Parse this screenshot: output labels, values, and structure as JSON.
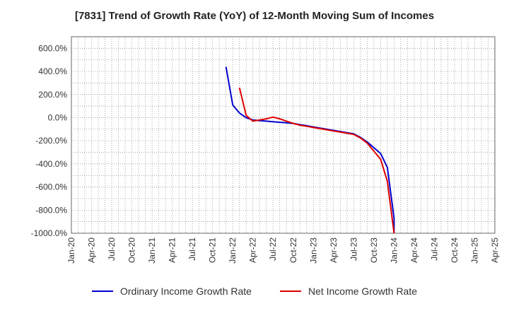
{
  "chart_data": {
    "type": "line",
    "title": "[7831]  Trend of Growth Rate (YoY) of 12-Month Moving Sum of Incomes",
    "xlabel": "",
    "ylabel": "",
    "x_ticks": [
      "Jan-20",
      "Apr-20",
      "Jul-20",
      "Oct-20",
      "Jan-21",
      "Apr-21",
      "Jul-21",
      "Oct-21",
      "Jan-22",
      "Apr-22",
      "Jul-22",
      "Oct-22",
      "Jan-23",
      "Apr-23",
      "Jul-23",
      "Oct-23",
      "Jan-24",
      "Apr-24",
      "Jul-24",
      "Oct-24",
      "Jan-25",
      "Apr-25"
    ],
    "y_ticks": [
      "600.0%",
      "400.0%",
      "200.0%",
      "0.0%",
      "-200.0%",
      "-400.0%",
      "-600.0%",
      "-800.0%",
      "-1000.0%"
    ],
    "ylim": [
      -1000,
      700
    ],
    "xlim": [
      "2020-01",
      "2025-04"
    ],
    "grid": true,
    "legend_position": "bottom",
    "series": [
      {
        "name": "Ordinary Income Growth Rate",
        "color": "#0000cc",
        "points": [
          [
            "2021-12",
            440
          ],
          [
            "2022-01",
            110
          ],
          [
            "2022-02",
            40
          ],
          [
            "2022-03",
            0
          ],
          [
            "2022-04",
            -20
          ],
          [
            "2022-05",
            -25
          ],
          [
            "2022-06",
            -30
          ],
          [
            "2022-07",
            -35
          ],
          [
            "2022-08",
            -40
          ],
          [
            "2022-09",
            -45
          ],
          [
            "2022-10",
            -50
          ],
          [
            "2022-11",
            -60
          ],
          [
            "2022-12",
            -70
          ],
          [
            "2023-01",
            -80
          ],
          [
            "2023-02",
            -90
          ],
          [
            "2023-03",
            -100
          ],
          [
            "2023-04",
            -110
          ],
          [
            "2023-05",
            -120
          ],
          [
            "2023-06",
            -130
          ],
          [
            "2023-07",
            -140
          ],
          [
            "2023-08",
            -170
          ],
          [
            "2023-09",
            -210
          ],
          [
            "2023-10",
            -260
          ],
          [
            "2023-11",
            -310
          ],
          [
            "2023-12",
            -430
          ],
          [
            "2024-01",
            -870
          ],
          [
            "2024-01",
            -1000
          ]
        ]
      },
      {
        "name": "Net Income Growth Rate",
        "color": "#dd0000",
        "points": [
          [
            "2022-02",
            260
          ],
          [
            "2022-03",
            20
          ],
          [
            "2022-04",
            -30
          ],
          [
            "2022-05",
            -20
          ],
          [
            "2022-06",
            -10
          ],
          [
            "2022-07",
            5
          ],
          [
            "2022-08",
            -10
          ],
          [
            "2022-09",
            -30
          ],
          [
            "2022-10",
            -50
          ],
          [
            "2022-11",
            -65
          ],
          [
            "2022-12",
            -75
          ],
          [
            "2023-01",
            -85
          ],
          [
            "2023-02",
            -95
          ],
          [
            "2023-03",
            -105
          ],
          [
            "2023-04",
            -115
          ],
          [
            "2023-05",
            -125
          ],
          [
            "2023-06",
            -135
          ],
          [
            "2023-07",
            -145
          ],
          [
            "2023-08",
            -175
          ],
          [
            "2023-09",
            -220
          ],
          [
            "2023-10",
            -290
          ],
          [
            "2023-11",
            -360
          ],
          [
            "2023-12",
            -550
          ],
          [
            "2024-01",
            -1000
          ]
        ]
      }
    ]
  }
}
